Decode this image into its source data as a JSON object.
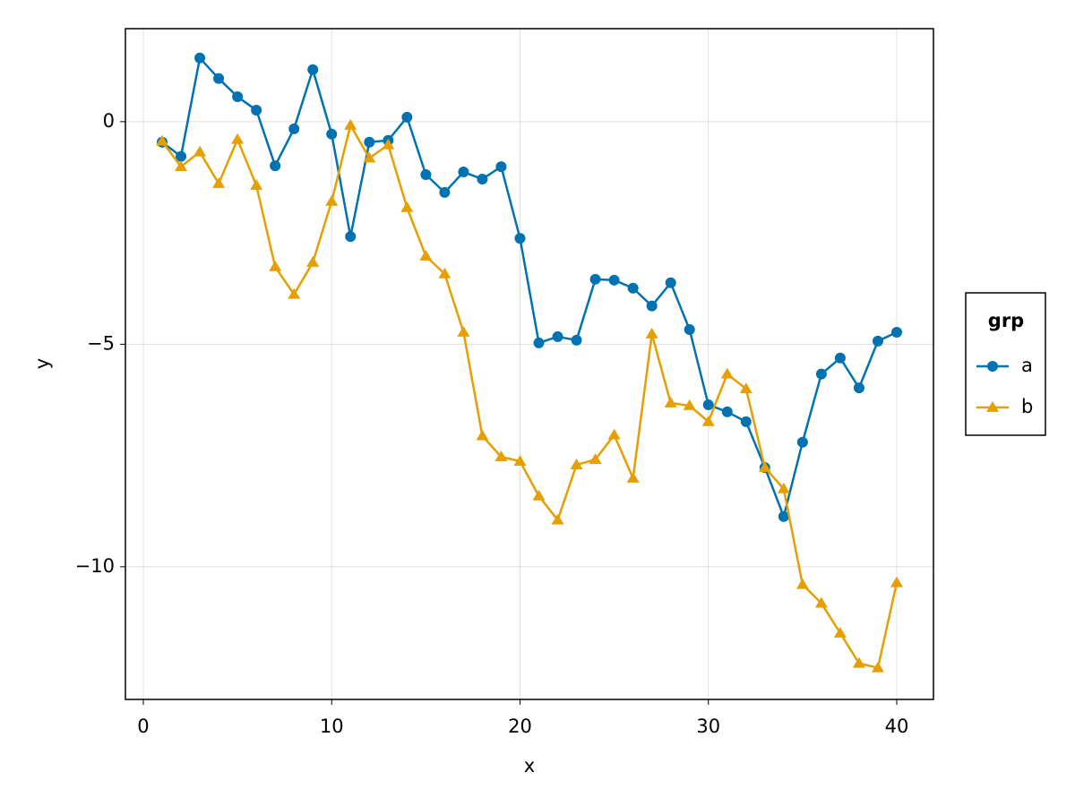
{
  "chart_data": {
    "type": "line",
    "x_label": "x",
    "y_label": "y",
    "x": [
      1,
      2,
      3,
      4,
      5,
      6,
      7,
      8,
      9,
      10,
      11,
      12,
      13,
      14,
      15,
      16,
      17,
      18,
      19,
      20,
      21,
      22,
      23,
      24,
      25,
      26,
      27,
      28,
      29,
      30,
      31,
      32,
      33,
      34,
      35,
      36,
      37,
      38,
      39,
      40
    ],
    "series": [
      {
        "name": "a",
        "color": "#0072b2",
        "marker": "circle",
        "values": [
          -0.46,
          -0.78,
          1.43,
          0.97,
          0.56,
          0.26,
          -0.99,
          -0.16,
          1.17,
          -0.28,
          -2.58,
          -0.46,
          -0.42,
          0.1,
          -1.19,
          -1.59,
          -1.13,
          -1.29,
          -1.01,
          -2.62,
          -4.97,
          -4.83,
          -4.91,
          -3.54,
          -3.56,
          -3.74,
          -4.14,
          -3.62,
          -4.67,
          -6.36,
          -6.52,
          -6.74,
          -7.77,
          -8.87,
          -7.2,
          -5.67,
          -5.31,
          -5.98,
          -4.93,
          -4.73
        ]
      },
      {
        "name": "b",
        "color": "#e69f00",
        "marker": "triangle",
        "values": [
          -0.44,
          -1.01,
          -0.68,
          -1.39,
          -0.4,
          -1.43,
          -3.26,
          -3.88,
          -3.16,
          -1.79,
          -0.08,
          -0.82,
          -0.52,
          -1.93,
          -3.02,
          -3.42,
          -4.73,
          -7.06,
          -7.53,
          -7.63,
          -8.41,
          -8.95,
          -7.71,
          -7.59,
          -7.04,
          -8.01,
          -4.77,
          -6.32,
          -6.38,
          -6.74,
          -5.67,
          -6.0,
          -7.77,
          -8.25,
          -10.4,
          -10.82,
          -11.49,
          -12.17,
          -12.27,
          -10.36
        ]
      }
    ],
    "xlim": [
      -0.95,
      41.95
    ],
    "ylim": [
      -12.98,
      2.09
    ],
    "xticks": [
      0,
      10,
      20,
      30,
      40
    ],
    "yticks": [
      {
        "value": -10,
        "label": "−10"
      },
      {
        "value": -5,
        "label": "−5"
      },
      0
    ],
    "grid": true,
    "legend_title": "grp",
    "legend_position": "right"
  }
}
